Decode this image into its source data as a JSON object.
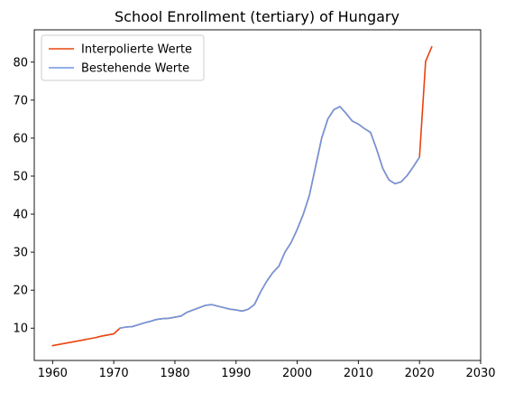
{
  "chart_data": {
    "type": "line",
    "title": "School Enrollment (tertiary) of Hungary",
    "xlabel": "",
    "ylabel": "",
    "xlim": [
      1957.0,
      2030
    ],
    "ylim": [
      1.5,
      88.5
    ],
    "xticks": [
      1960,
      1970,
      1980,
      1990,
      2000,
      2010,
      2020,
      2030
    ],
    "yticks": [
      10,
      20,
      30,
      40,
      50,
      60,
      70,
      80
    ],
    "grid": false,
    "legend_position": "top-left",
    "series": [
      {
        "name": "Interpolierte Werte",
        "color": "#e8430e",
        "points": [
          [
            1960,
            5.4
          ],
          [
            1961,
            5.7
          ],
          [
            1962,
            6.0
          ],
          [
            1963,
            6.3
          ],
          [
            1964,
            6.6
          ],
          [
            1965,
            6.9
          ],
          [
            1966,
            7.2
          ],
          [
            1967,
            7.5
          ],
          [
            1968,
            7.9
          ],
          [
            1969,
            8.2
          ],
          [
            1970,
            8.5
          ],
          [
            1971,
            10.0
          ],
          [
            1972,
            10.3
          ],
          [
            1973,
            10.4
          ],
          [
            1974,
            10.9
          ],
          [
            1975,
            11.4
          ],
          [
            1976,
            11.8
          ],
          [
            1977,
            12.3
          ],
          [
            1978,
            12.5
          ],
          [
            1979,
            12.6
          ],
          [
            1980,
            12.9
          ],
          [
            1981,
            13.2
          ],
          [
            1982,
            14.2
          ],
          [
            1983,
            14.8
          ],
          [
            1984,
            15.4
          ],
          [
            1985,
            16.0
          ],
          [
            1986,
            16.2
          ],
          [
            1987,
            15.8
          ],
          [
            1988,
            15.4
          ],
          [
            1989,
            15.0
          ],
          [
            1990,
            14.8
          ],
          [
            1991,
            14.5
          ],
          [
            1992,
            15.0
          ],
          [
            1993,
            16.2
          ],
          [
            1994,
            19.5
          ],
          [
            1995,
            22.3
          ],
          [
            1996,
            24.6
          ],
          [
            1997,
            26.3
          ],
          [
            1998,
            30.0
          ],
          [
            1999,
            32.5
          ],
          [
            2000,
            36.0
          ],
          [
            2001,
            40.0
          ],
          [
            2002,
            45.0
          ],
          [
            2003,
            52.5
          ],
          [
            2004,
            60.0
          ],
          [
            2005,
            65.0
          ],
          [
            2006,
            67.5
          ],
          [
            2007,
            68.3
          ],
          [
            2008,
            66.5
          ],
          [
            2009,
            64.5
          ],
          [
            2010,
            63.7
          ],
          [
            2011,
            62.5
          ],
          [
            2012,
            61.5
          ],
          [
            2013,
            57.0
          ],
          [
            2014,
            52.0
          ],
          [
            2015,
            49.0
          ],
          [
            2016,
            48.0
          ],
          [
            2017,
            48.5
          ],
          [
            2018,
            50.2
          ],
          [
            2019,
            52.5
          ],
          [
            2020,
            55.0
          ],
          [
            2021,
            80.2
          ],
          [
            2022,
            84.0
          ]
        ]
      },
      {
        "name": "Bestehende Werte",
        "color": "#6f97e0",
        "points": [
          [
            1971,
            10.0
          ],
          [
            1972,
            10.3
          ],
          [
            1973,
            10.4
          ],
          [
            1974,
            10.9
          ],
          [
            1975,
            11.4
          ],
          [
            1976,
            11.8
          ],
          [
            1977,
            12.3
          ],
          [
            1978,
            12.5
          ],
          [
            1979,
            12.6
          ],
          [
            1980,
            12.9
          ],
          [
            1981,
            13.2
          ],
          [
            1982,
            14.2
          ],
          [
            1983,
            14.8
          ],
          [
            1984,
            15.4
          ],
          [
            1985,
            16.0
          ],
          [
            1986,
            16.2
          ],
          [
            1987,
            15.8
          ],
          [
            1988,
            15.4
          ],
          [
            1989,
            15.0
          ],
          [
            1990,
            14.8
          ],
          [
            1991,
            14.5
          ],
          [
            1992,
            15.0
          ],
          [
            1993,
            16.2
          ],
          [
            1994,
            19.5
          ],
          [
            1995,
            22.3
          ],
          [
            1996,
            24.6
          ],
          [
            1997,
            26.3
          ],
          [
            1998,
            30.0
          ],
          [
            1999,
            32.5
          ],
          [
            2000,
            36.0
          ],
          [
            2001,
            40.0
          ],
          [
            2002,
            45.0
          ],
          [
            2003,
            52.5
          ],
          [
            2004,
            60.0
          ],
          [
            2005,
            65.0
          ],
          [
            2006,
            67.5
          ],
          [
            2007,
            68.3
          ],
          [
            2008,
            66.5
          ],
          [
            2009,
            64.5
          ],
          [
            2010,
            63.7
          ],
          [
            2011,
            62.5
          ],
          [
            2012,
            61.5
          ],
          [
            2013,
            57.0
          ],
          [
            2014,
            52.0
          ],
          [
            2015,
            49.0
          ],
          [
            2016,
            48.0
          ],
          [
            2017,
            48.5
          ],
          [
            2018,
            50.2
          ],
          [
            2019,
            52.5
          ],
          [
            2020,
            55.0
          ]
        ]
      }
    ]
  }
}
